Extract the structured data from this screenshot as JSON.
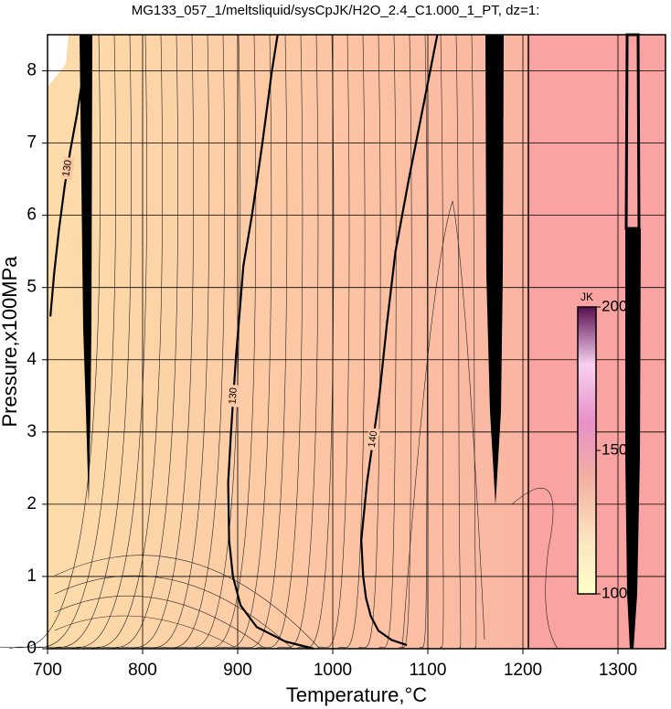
{
  "chart_data": {
    "type": "contour",
    "title": "MG133_057_1/meltsliquid/sysCpJK/H2O_2.4_C1.000_1_PT, dz=1:",
    "x_label": "Temperature,°C",
    "y_label": "Pressure,x100MPa",
    "xlim": [
      700,
      1350
    ],
    "ylim": [
      0,
      8.5
    ],
    "xticks": [
      700,
      800,
      900,
      1000,
      1100,
      1200,
      1300
    ],
    "yticks": [
      0,
      1,
      2,
      3,
      4,
      5,
      6,
      7,
      8
    ],
    "grid": true,
    "contours": [
      {
        "level": 130,
        "color": "#000000",
        "x": [
          980,
          950,
          920,
          903,
          895,
          891,
          890,
          893,
          898,
          906,
          915,
          926,
          936,
          942
        ],
        "y": [
          0,
          0.1,
          0.3,
          0.6,
          1,
          1.5,
          2.3,
          3,
          4,
          5.3,
          6,
          7,
          8,
          8.5
        ]
      },
      {
        "level": 140,
        "color": "#000000",
        "x": [
          1078,
          1062,
          1048,
          1040,
          1035,
          1032,
          1030,
          1036,
          1049,
          1057,
          1066,
          1080,
          1095,
          1110
        ],
        "y": [
          0.05,
          0.12,
          0.25,
          0.45,
          0.7,
          1,
          1.5,
          2.3,
          3.5,
          4.5,
          5.5,
          6.5,
          7.5,
          8.5
        ]
      },
      {
        "level": 130,
        "color": "#000000",
        "x": [
          703,
          707,
          712,
          718,
          724,
          731,
          738
        ],
        "y": [
          4.6,
          5.2,
          5.8,
          6.4,
          6.9,
          7.4,
          8.0
        ]
      }
    ],
    "colorbar": {
      "label": "JK",
      "lim": [
        100,
        200
      ],
      "ticks": [
        100,
        150,
        200
      ],
      "colors": [
        "#ffffc8",
        "#fbe3c0",
        "#f4b0a0",
        "#e890c8",
        "#f8d0f0",
        "#5a1050"
      ]
    }
  }
}
